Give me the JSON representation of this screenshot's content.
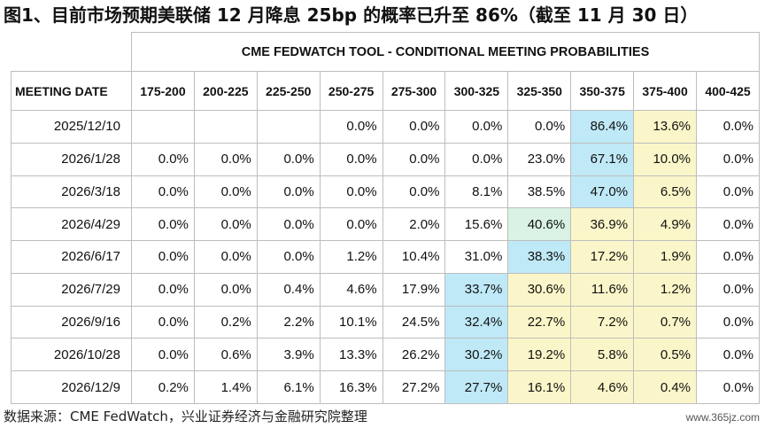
{
  "title": "图1、目前市场预期美联储 12 月降息 25bp 的概率已升至 86%（截至 11 月 30 日）",
  "table": {
    "tool_title": "CME FEDWATCH TOOL - CONDITIONAL MEETING PROBABILITIES",
    "meeting_date_label": "MEETING DATE",
    "columns": [
      "175-200",
      "200-225",
      "225-250",
      "250-275",
      "275-300",
      "300-325",
      "325-350",
      "350-375",
      "375-400",
      "400-425"
    ],
    "rows": [
      {
        "date": "2025/12/10",
        "values": [
          "",
          "",
          "",
          "0.0%",
          "0.0%",
          "0.0%",
          "0.0%",
          "86.4%",
          "13.6%",
          "0.0%"
        ]
      },
      {
        "date": "2026/1/28",
        "values": [
          "0.0%",
          "0.0%",
          "0.0%",
          "0.0%",
          "0.0%",
          "0.0%",
          "23.0%",
          "67.1%",
          "10.0%",
          "0.0%"
        ]
      },
      {
        "date": "2026/3/18",
        "values": [
          "0.0%",
          "0.0%",
          "0.0%",
          "0.0%",
          "0.0%",
          "8.1%",
          "38.5%",
          "47.0%",
          "6.5%",
          "0.0%"
        ]
      },
      {
        "date": "2026/4/29",
        "values": [
          "0.0%",
          "0.0%",
          "0.0%",
          "0.0%",
          "2.0%",
          "15.6%",
          "40.6%",
          "36.9%",
          "4.9%",
          "0.0%"
        ]
      },
      {
        "date": "2026/6/17",
        "values": [
          "0.0%",
          "0.0%",
          "0.0%",
          "1.2%",
          "10.4%",
          "31.0%",
          "38.3%",
          "17.2%",
          "1.9%",
          "0.0%"
        ]
      },
      {
        "date": "2026/7/29",
        "values": [
          "0.0%",
          "0.0%",
          "0.4%",
          "4.6%",
          "17.9%",
          "33.7%",
          "30.6%",
          "11.6%",
          "1.2%",
          "0.0%"
        ]
      },
      {
        "date": "2026/9/16",
        "values": [
          "0.0%",
          "0.2%",
          "2.2%",
          "10.1%",
          "24.5%",
          "32.4%",
          "22.7%",
          "7.2%",
          "0.7%",
          "0.0%"
        ]
      },
      {
        "date": "2026/10/28",
        "values": [
          "0.0%",
          "0.6%",
          "3.9%",
          "13.3%",
          "26.2%",
          "30.2%",
          "19.2%",
          "5.8%",
          "0.5%",
          "0.0%"
        ]
      },
      {
        "date": "2026/12/9",
        "values": [
          "0.2%",
          "1.4%",
          "6.1%",
          "16.3%",
          "27.2%",
          "27.7%",
          "16.1%",
          "4.6%",
          "0.4%",
          "0.0%"
        ]
      }
    ],
    "highlights": [
      [
        "",
        "",
        "",
        "",
        "",
        "",
        "",
        "blue",
        "yellow",
        ""
      ],
      [
        "",
        "",
        "",
        "",
        "",
        "",
        "",
        "blue",
        "yellow",
        ""
      ],
      [
        "",
        "",
        "",
        "",
        "",
        "",
        "",
        "blue",
        "yellow",
        ""
      ],
      [
        "",
        "",
        "",
        "",
        "",
        "",
        "green",
        "yellow",
        "yellow",
        ""
      ],
      [
        "",
        "",
        "",
        "",
        "",
        "",
        "blue",
        "yellow",
        "yellow",
        ""
      ],
      [
        "",
        "",
        "",
        "",
        "",
        "blue",
        "yellow",
        "yellow",
        "yellow",
        ""
      ],
      [
        "",
        "",
        "",
        "",
        "",
        "blue",
        "yellow",
        "yellow",
        "yellow",
        ""
      ],
      [
        "",
        "",
        "",
        "",
        "",
        "blue",
        "yellow",
        "yellow",
        "yellow",
        ""
      ],
      [
        "",
        "",
        "",
        "",
        "",
        "blue",
        "yellow",
        "yellow",
        "yellow",
        ""
      ]
    ],
    "colors": {
      "blue": "#bfe9f7",
      "yellow": "#fbf6c9",
      "green": "#d9f2e4"
    }
  },
  "source": "数据来源：CME FedWatch，兴业证券经济与金融研究院整理",
  "watermark": "www.365jz.com"
}
